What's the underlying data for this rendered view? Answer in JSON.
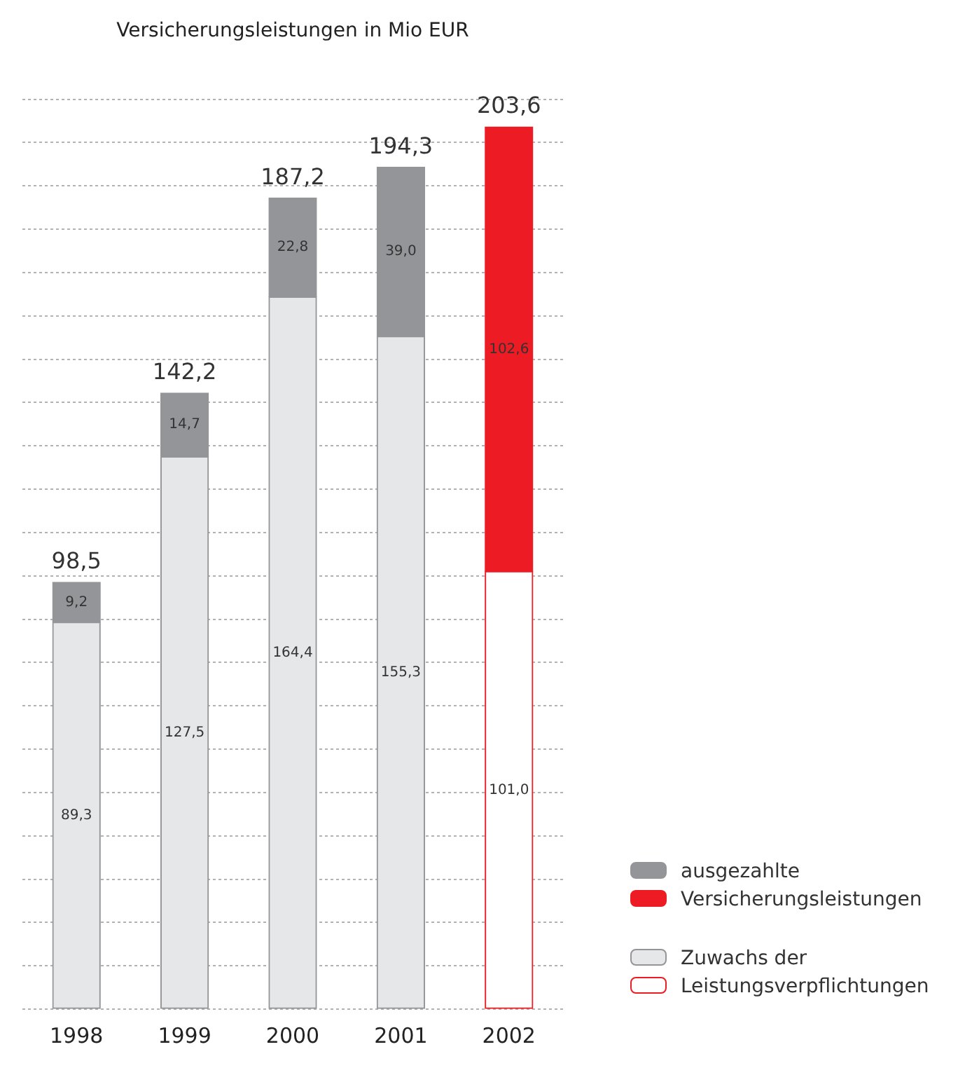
{
  "chart_data": {
    "type": "bar",
    "title": "Versicherungsleistungen in Mio EUR",
    "categories": [
      "1998",
      "1999",
      "2000",
      "2001",
      "2002"
    ],
    "stacked": true,
    "series": [
      {
        "name": "Zuwachs der Leistungsverpflichtungen",
        "colors": [
          "#e6e7e8",
          "#e6e7e8",
          "#e6e7e8",
          "#e6e7e8",
          "#ffffff"
        ],
        "values": [
          89.3,
          127.5,
          164.4,
          155.3,
          101.0
        ],
        "value_labels": [
          "89,3",
          "127,5",
          "164,4",
          "155,3",
          "101,0"
        ]
      },
      {
        "name": "ausgezahlte Versicherungsleistungen",
        "colors": [
          "#939598",
          "#939598",
          "#939598",
          "#939598",
          "#ed1c24"
        ],
        "values": [
          9.2,
          14.7,
          22.8,
          39.0,
          102.6
        ],
        "value_labels": [
          "9,2",
          "14,7",
          "22,8",
          "39,0",
          "102,6"
        ]
      }
    ],
    "totals": [
      "98,5",
      "142,2",
      "187,2",
      "194,3",
      "203,6"
    ],
    "grid": "y",
    "tick_labels": "x",
    "legend": "right"
  }
}
